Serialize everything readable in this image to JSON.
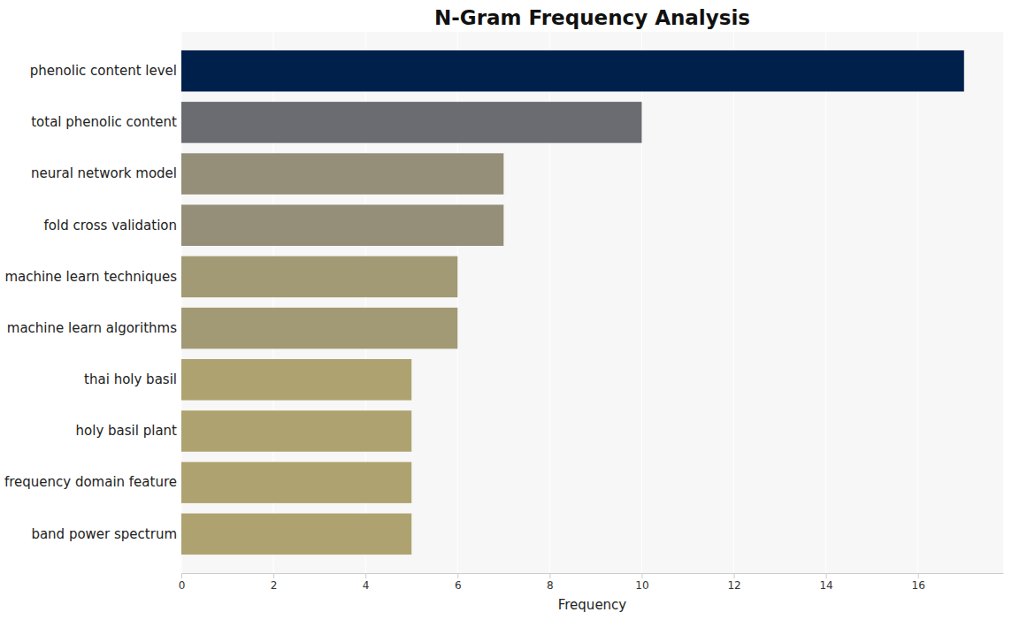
{
  "chart_data": {
    "type": "bar",
    "orientation": "horizontal",
    "title": "N-Gram Frequency Analysis",
    "x_label": "Frequency",
    "categories": [
      "phenolic content level",
      "total phenolic content",
      "neural network model",
      "fold cross validation",
      "machine learn techniques",
      "machine learn algorithms",
      "thai holy basil",
      "holy basil plant",
      "frequency domain feature",
      "band power spectrum"
    ],
    "values": [
      17,
      10,
      7,
      7,
      6,
      6,
      5,
      5,
      5,
      5
    ],
    "colors": [
      "#00204c",
      "#6b6c72",
      "#958e79",
      "#958e79",
      "#a19a74",
      "#a19a74",
      "#aea370",
      "#aea370",
      "#aea370",
      "#aea370"
    ],
    "xlim": [
      0,
      17.85
    ],
    "xticks": [
      0,
      2,
      4,
      6,
      8,
      10,
      12,
      14,
      16
    ],
    "grid": true
  }
}
